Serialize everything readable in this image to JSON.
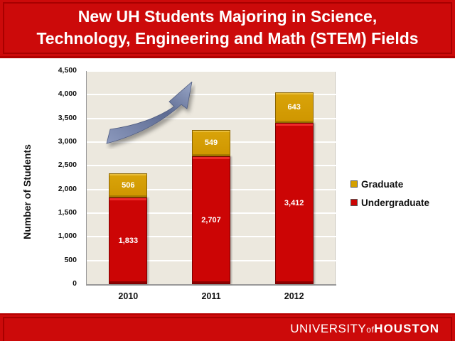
{
  "header": {
    "title_line1": "New UH Students Majoring in Science,",
    "title_line2": "Technology, Engineering and Math (STEM) Fields"
  },
  "footer": {
    "logo_part1": "UNIVERSITY",
    "logo_part2": "of",
    "logo_part3": "HOUSTON"
  },
  "colors": {
    "brand_red": "#cc0a0a",
    "graduate": "#d4a000",
    "undergraduate": "#cc0505",
    "plot_bg": "#ece8de",
    "arrow": "#6f7fa6"
  },
  "chart_data": {
    "type": "bar",
    "stacked": true,
    "title": "New UH Students Majoring in Science, Technology, Engineering and Math (STEM) Fields",
    "xlabel": "",
    "ylabel": "Number of Students",
    "categories": [
      "2010",
      "2011",
      "2012"
    ],
    "series": [
      {
        "name": "Undergraduate",
        "values": [
          1833,
          2707,
          3412
        ],
        "labels": [
          "1,833",
          "2,707",
          "3,412"
        ],
        "color": "#cc0505"
      },
      {
        "name": "Graduate",
        "values": [
          506,
          549,
          643
        ],
        "labels": [
          "506",
          "549",
          "643"
        ],
        "color": "#d4a000"
      }
    ],
    "ylim": [
      0,
      4500
    ],
    "yticks": [
      "0",
      "500",
      "1,000",
      "1,500",
      "2,000",
      "2,500",
      "3,000",
      "3,500",
      "4,000",
      "4,500"
    ],
    "grid": true,
    "legend": {
      "position": "right",
      "entries": [
        "Graduate",
        "Undergraduate"
      ]
    },
    "annotations": [
      "upward-trend-arrow"
    ]
  }
}
